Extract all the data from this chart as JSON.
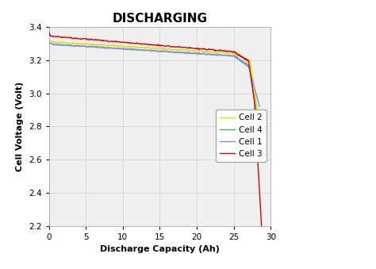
{
  "title": "DISCHARGING",
  "xlabel": "Discharge Capacity (Ah)",
  "ylabel": "Cell Voltage (Volt)",
  "xlim": [
    0,
    30
  ],
  "ylim": [
    2.2,
    3.4
  ],
  "yticks": [
    2.2,
    2.4,
    2.6,
    2.8,
    3.0,
    3.2,
    3.4
  ],
  "xticks": [
    0,
    5,
    10,
    15,
    20,
    25,
    30
  ],
  "legend": [
    "Cell 1",
    "Cell 2",
    "Cell 3",
    "Cell 4"
  ],
  "colors": {
    "cell1": "#8888ff",
    "cell2": "#dddd00",
    "cell3": "#dd0000",
    "cell4": "#44bb44"
  },
  "linewidth": 1.0,
  "plot_bg": "#f0f0f0",
  "fig_bg": "#ffffff",
  "title_fontsize": 11,
  "axis_fontsize": 8,
  "tick_fontsize": 7.5
}
